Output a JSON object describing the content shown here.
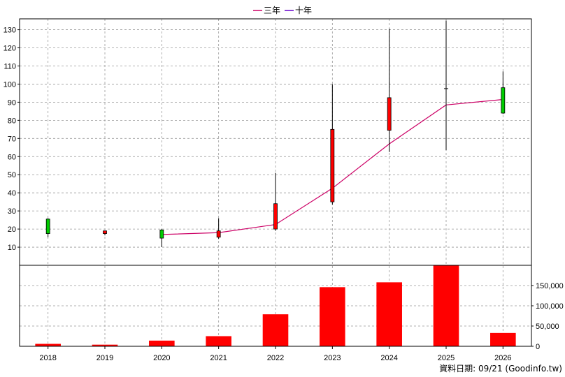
{
  "chart_data": {
    "type": "candlestick-line-bar",
    "categories": [
      "2018",
      "2019",
      "2020",
      "2021",
      "2022",
      "2023",
      "2024",
      "2025",
      "2026"
    ],
    "legend": [
      {
        "label": "三年",
        "color": "#cc0066"
      },
      {
        "label": "十年",
        "color": "#6600cc"
      }
    ],
    "legend_position": "top-center",
    "price_axis": {
      "ticks": [
        10,
        20,
        30,
        40,
        50,
        60,
        70,
        80,
        90,
        100,
        110,
        120,
        130
      ],
      "range": [
        0,
        136
      ],
      "side": "left"
    },
    "volume_axis": {
      "ticks": [
        "0",
        "50,000",
        "100,000",
        "150,000"
      ],
      "tick_values": [
        0,
        50000,
        100000,
        150000
      ],
      "range": [
        0,
        200000
      ],
      "side": "right"
    },
    "candles": [
      {
        "open": 17.5,
        "high": 26,
        "low": 15.5,
        "close": 25.5,
        "color": "#00cc00"
      },
      {
        "open": 19,
        "high": 19,
        "low": 16.5,
        "close": 17.5,
        "color": "#ff0000"
      },
      {
        "open": 15,
        "high": 20,
        "low": 10,
        "close": 19.5,
        "color": "#00cc00"
      },
      {
        "open": 19,
        "high": 26,
        "low": 14.5,
        "close": 15.5,
        "color": "#ff0000"
      },
      {
        "open": 34,
        "high": 51,
        "low": 19,
        "close": 20,
        "color": "#ff0000"
      },
      {
        "open": 75,
        "high": 100,
        "low": 33.5,
        "close": 35,
        "color": "#ff0000"
      },
      {
        "open": 92.5,
        "high": 130.5,
        "low": 62.5,
        "close": 74.5,
        "color": "#ff0000"
      },
      {
        "open": 97.5,
        "high": 135,
        "low": 63.5,
        "close": 97.5,
        "color": "#000000"
      },
      {
        "open": 84,
        "high": 107,
        "low": 83.5,
        "close": 98,
        "color": "#00cc00"
      }
    ],
    "three_year_avg": [
      null,
      null,
      17,
      18,
      22.5,
      42.5,
      67,
      88.5,
      91.5
    ],
    "volume": [
      6000,
      4000,
      14000,
      25000,
      79000,
      146000,
      158000,
      200000,
      33000
    ],
    "volume_color": "#ff0000",
    "grid": true
  },
  "footer": {
    "source": "資料日期: 09/21 (Goodinfo.tw)"
  }
}
